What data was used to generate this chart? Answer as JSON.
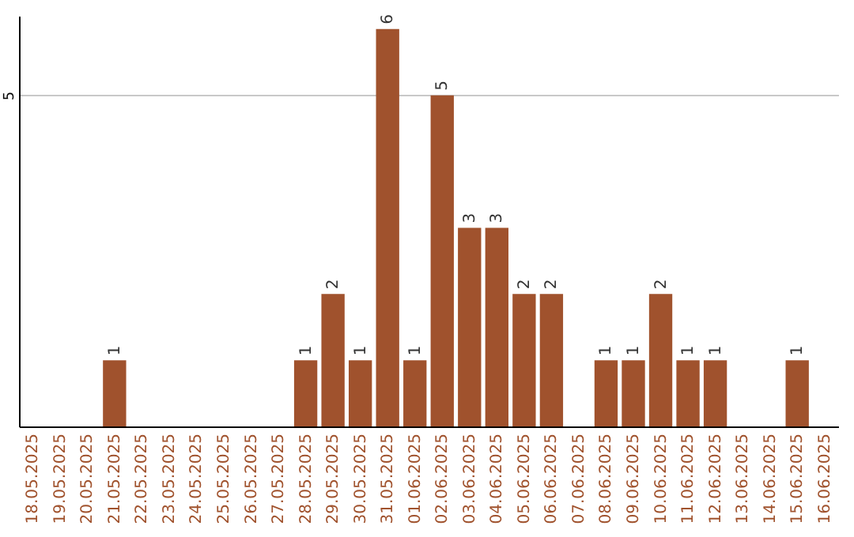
{
  "chart_data": {
    "type": "bar",
    "categories": [
      "18.05.2025",
      "19.05.2025",
      "20.05.2025",
      "21.05.2025",
      "22.05.2025",
      "23.05.2025",
      "24.05.2025",
      "25.05.2025",
      "26.05.2025",
      "27.05.2025",
      "28.05.2025",
      "29.05.2025",
      "30.05.2025",
      "31.05.2025",
      "01.06.2025",
      "02.06.2025",
      "03.06.2025",
      "04.06.2025",
      "05.06.2025",
      "06.06.2025",
      "07.06.2025",
      "08.06.2025",
      "09.06.2025",
      "10.06.2025",
      "11.06.2025",
      "12.06.2025",
      "13.06.2025",
      "14.06.2025",
      "15.06.2025",
      "16.06.2025"
    ],
    "values": [
      0,
      0,
      0,
      1,
      0,
      0,
      0,
      0,
      0,
      0,
      1,
      2,
      1,
      6,
      1,
      5,
      3,
      3,
      2,
      2,
      0,
      1,
      1,
      2,
      1,
      1,
      0,
      0,
      1,
      0
    ],
    "value_labels": [
      null,
      null,
      null,
      "1",
      null,
      null,
      null,
      null,
      null,
      null,
      "1",
      "2",
      "1",
      "6",
      "1",
      "5",
      "3",
      "3",
      "2",
      "2",
      null,
      "1",
      "1",
      "2",
      "1",
      "1",
      null,
      null,
      "1",
      null
    ],
    "color": "#a0522d",
    "ylim": [
      0,
      6.2
    ],
    "yticks": [
      5
    ],
    "grid": "y"
  }
}
